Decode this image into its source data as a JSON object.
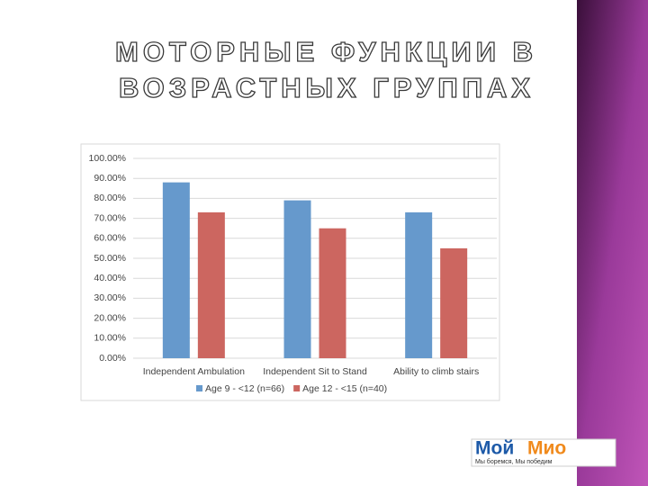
{
  "slide_title": {
    "line1": "МОТОРНЫЕ ФУНКЦИИ В",
    "line2": "ВОЗРАСТНЫХ ГРУППАХ"
  },
  "chart_data": {
    "type": "bar",
    "categories": [
      "Independent Ambulation",
      "Independent Sit to Stand",
      "Ability to climb stairs"
    ],
    "series": [
      {
        "name": "Age 9 - <12 (n=66)",
        "color": "#6699cc",
        "values": [
          88,
          79,
          73
        ]
      },
      {
        "name": "Age 12 - <15 (n=40)",
        "color": "#cc6660",
        "values": [
          73,
          65,
          55
        ]
      }
    ],
    "ylim": [
      0,
      100
    ],
    "yticks": [
      {
        "value": 0,
        "label": "0.00%"
      },
      {
        "value": 10,
        "label": "10.00%"
      },
      {
        "value": 20,
        "label": "20.00%"
      },
      {
        "value": 30,
        "label": "30.00%"
      },
      {
        "value": 40,
        "label": "40.00%"
      },
      {
        "value": 50,
        "label": "50.00%"
      },
      {
        "value": 60,
        "label": "60.00%"
      },
      {
        "value": 70,
        "label": "70.00%"
      },
      {
        "value": 80,
        "label": "80.00%"
      },
      {
        "value": 90,
        "label": "90.00%"
      },
      {
        "value": 100,
        "label": "100.00%"
      }
    ],
    "grid": true,
    "legend": "bottom"
  },
  "logo": {
    "part1": "Мой",
    "part2": "Мио",
    "tagline": "Мы боремся, Мы победим"
  }
}
